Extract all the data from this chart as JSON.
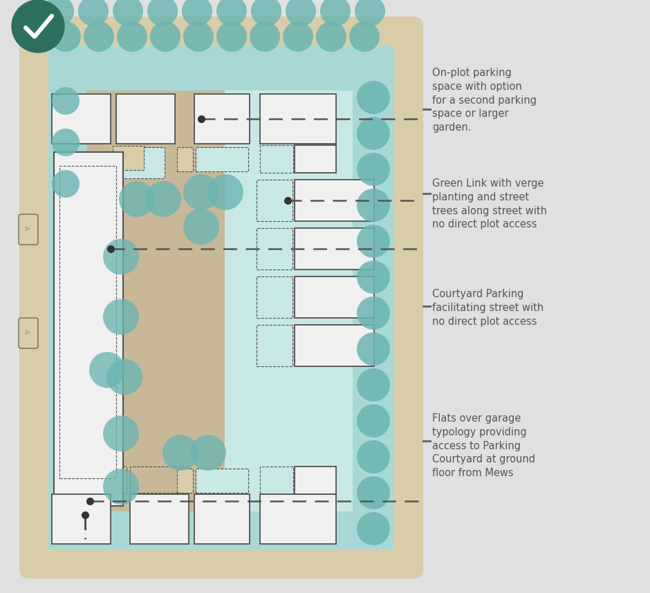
{
  "bg_color": "#e0e0e0",
  "sand_color": "#d9cca8",
  "road_light": "#c8e8e5",
  "road_mid": "#a8d8d5",
  "courtyard_color": "#c8b898",
  "building_color": "#f0f0f0",
  "building_edge": "#505050",
  "dashed_fill": "#d8f0ee",
  "dashed_fill2": "none",
  "tree_color": "#6ab5b2",
  "dot_color": "#333333",
  "legend_text_color": "#555555",
  "checkmark_color": "#2d7060",
  "annotations": [
    "On-plot parking\nspace with option\nfor a second parking\nspace or larger\ngarden.",
    "Green Link with verge\nplanting and street\ntrees along street with\nno direct plot access",
    "Courtyard Parking\nfacilitating street with\nno direct plot access",
    "Flats over garage\ntypology providing\naccess to Parking\nCourtyard at ground\nfloor from Mews"
  ]
}
